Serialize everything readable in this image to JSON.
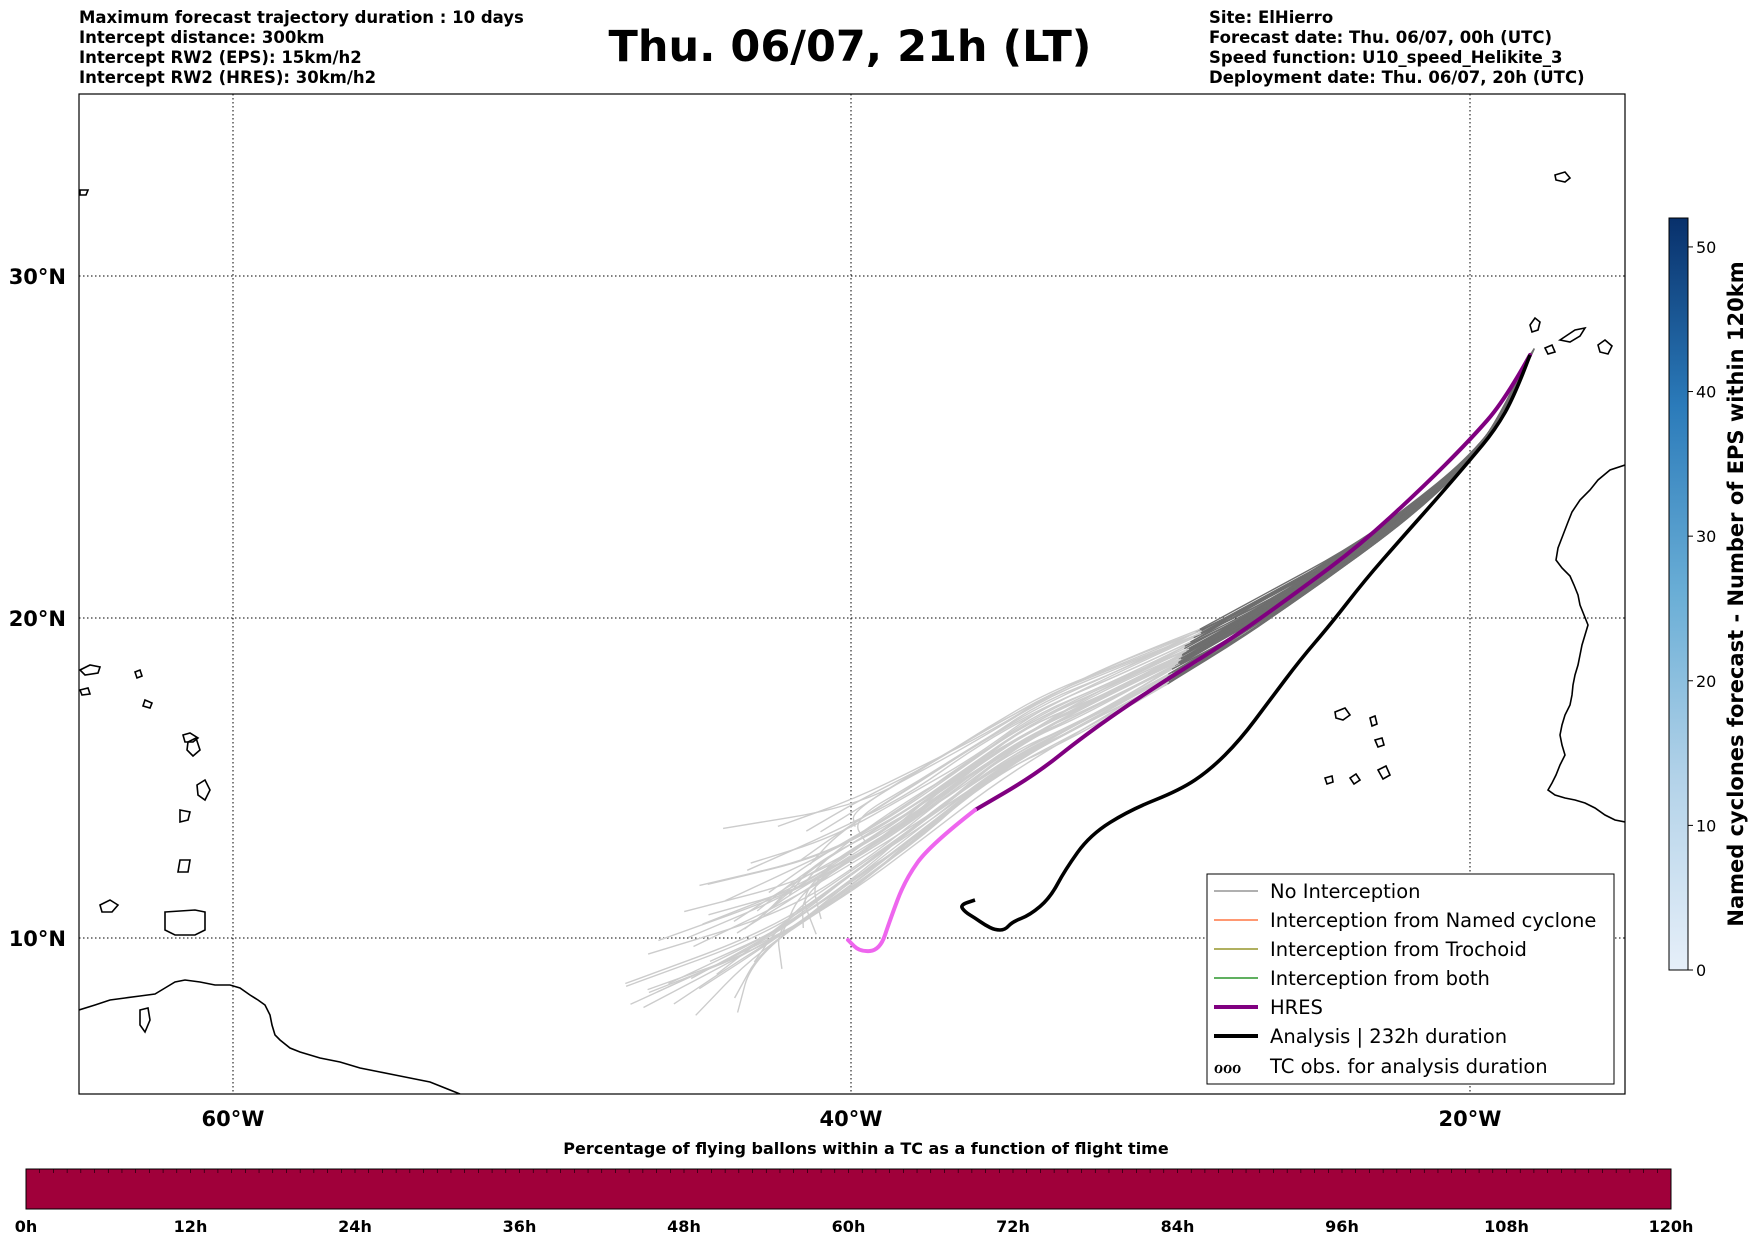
{
  "header": {
    "left": [
      "Maximum forecast trajectory duration : 10 days",
      "Intercept distance: 300km",
      "Intercept RW2 (EPS):  15km/h2",
      "Intercept RW2 (HRES): 30km/h2"
    ],
    "title": "Thu. 06/07, 21h (LT)",
    "right": [
      "Site: ElHierro",
      "Forecast date: Thu. 06/07, 00h (UTC)",
      "Speed function: U10_speed_Helikite_3",
      "Deployment date: Thu. 06/07, 20h (UTC)"
    ]
  },
  "map": {
    "lon_labels": [
      "60°W",
      "40°W",
      "20°W"
    ],
    "lat_labels": [
      "30°N",
      "20°N",
      "10°N"
    ]
  },
  "legend": {
    "items": [
      {
        "label": "No Interception",
        "color": "#808080"
      },
      {
        "label": "Interception from Named cyclone",
        "color": "#ff5a1f"
      },
      {
        "label": "Interception from Trochoid",
        "color": "#808000"
      },
      {
        "label": "Interception from both",
        "color": "#008000"
      },
      {
        "label": "HRES",
        "color": "#800080"
      },
      {
        "label": "Analysis | 232h duration",
        "color": "#000000"
      },
      {
        "label": "TC obs. for analysis duration",
        "color": "#000000"
      }
    ],
    "tc_symbol": "ℴℴℴ"
  },
  "colorbar_right": {
    "label": "Named cyclones forecast - Number of EPS within 120km",
    "ticks": [
      "0",
      "10",
      "20",
      "30",
      "40",
      "50"
    ],
    "colors": [
      "#e6eff9",
      "#08306b"
    ]
  },
  "colorbar_bottom": {
    "title": "Percentage of flying ballons within a TC as a function of flight time",
    "ticks": [
      "0h",
      "12h",
      "24h",
      "36h",
      "48h",
      "60h",
      "72h",
      "84h",
      "96h",
      "108h",
      "120h"
    ],
    "fill_color": "#a0003a",
    "fill_fraction": 1.0
  },
  "colors": {
    "eps_early": "#cccccc",
    "eps_late": "#6e6e6e",
    "hres": "#800080",
    "hres_early": "#ee66ee",
    "analysis": "#000000"
  }
}
